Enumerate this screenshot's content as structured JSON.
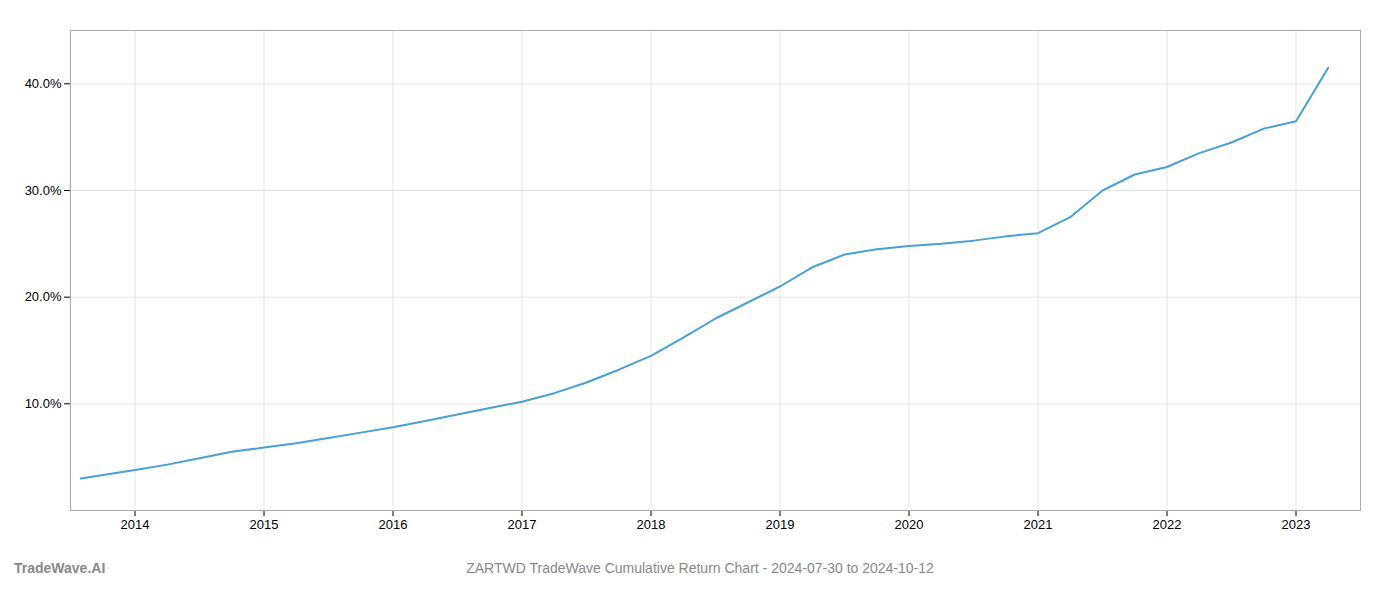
{
  "chart_data": {
    "type": "line",
    "title": "ZARTWD TradeWave Cumulative Return Chart - 2024-07-30 to 2024-10-12",
    "annotations": [
      "TradeWave.AI"
    ],
    "color": "#4a9fd4",
    "x": [
      2013.58,
      2014.0,
      2014.25,
      2014.5,
      2014.75,
      2015.0,
      2015.25,
      2015.5,
      2015.75,
      2016.0,
      2016.25,
      2016.5,
      2016.75,
      2017.0,
      2017.25,
      2017.5,
      2017.75,
      2018.0,
      2018.25,
      2018.5,
      2018.75,
      2019.0,
      2019.25,
      2019.5,
      2019.75,
      2020.0,
      2020.25,
      2020.5,
      2020.75,
      2021.0,
      2021.25,
      2021.5,
      2021.75,
      2022.0,
      2022.25,
      2022.5,
      2022.75,
      2023.0,
      2023.25
    ],
    "values": [
      3.0,
      3.8,
      4.3,
      4.9,
      5.5,
      5.9,
      6.3,
      6.8,
      7.3,
      7.8,
      8.4,
      9.0,
      9.6,
      10.2,
      11.0,
      12.0,
      13.2,
      14.5,
      16.2,
      18.0,
      19.5,
      21.0,
      22.8,
      24.0,
      24.5,
      24.8,
      25.0,
      25.3,
      25.7,
      26.0,
      27.5,
      30.0,
      31.5,
      32.2,
      33.5,
      34.5,
      35.8,
      36.5,
      41.5
    ],
    "xlim": [
      2013.5,
      2023.5
    ],
    "xticks": [
      2014,
      2015,
      2016,
      2017,
      2018,
      2019,
      2020,
      2021,
      2022,
      2023
    ],
    "ylim": [
      0,
      45
    ],
    "yticks": [
      {
        "value": 10.0,
        "label": "10.0%"
      },
      {
        "value": 20.0,
        "label": "20.0%"
      },
      {
        "value": 30.0,
        "label": "30.0%"
      },
      {
        "value": 40.0,
        "label": "40.0%"
      }
    ],
    "grid": true
  }
}
